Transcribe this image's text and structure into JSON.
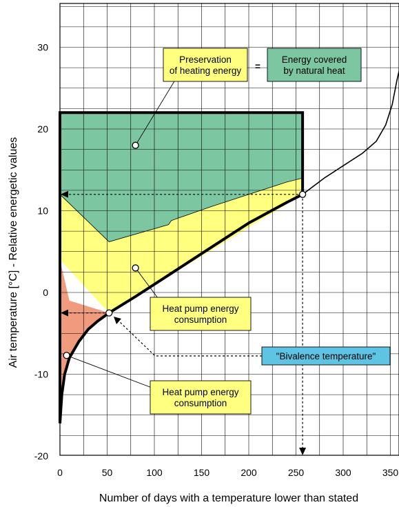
{
  "chart_data": {
    "type": "area",
    "xlabel": "Number of days with a temperature lower than stated",
    "ylabel": "Air temperature [°C] - Relative energetic values",
    "xlim": [
      0,
      360
    ],
    "ylim": [
      -20,
      35
    ],
    "x_ticks": [
      "0",
      "50",
      "100",
      "150",
      "200",
      "250",
      "300",
      "350"
    ],
    "y_ticks": [
      "-20",
      "-10",
      "0",
      "10",
      "20",
      "30"
    ],
    "grid": true,
    "temperature_curve": {
      "x": [
        0,
        2,
        5,
        10,
        20,
        30,
        40,
        52,
        80,
        120,
        160,
        200,
        240,
        257,
        280,
        300,
        320,
        335,
        345,
        352,
        357,
        360
      ],
      "y": [
        -16,
        -12.5,
        -10,
        -8,
        -6,
        -4.5,
        -3.5,
        -2.5,
        -0.5,
        2.5,
        5.5,
        8.5,
        11,
        12,
        14,
        15.5,
        17,
        18.5,
        20.5,
        23,
        26,
        27.5
      ]
    },
    "heating_energy_envelope": {
      "x": [
        0,
        0,
        257,
        257
      ],
      "y": [
        -16,
        22,
        22,
        12
      ]
    },
    "areas": [
      {
        "name": "Energy covered by natural heat",
        "color": "#7cc6a2",
        "x": [
          0,
          257,
          257,
          240,
          200,
          160,
          118,
          115,
          52,
          0
        ],
        "y": [
          22,
          22,
          14,
          13.5,
          12,
          10.5,
          8.8,
          8.3,
          6.2,
          12
        ]
      },
      {
        "name": "Heat pump energy consumption",
        "color": "#ffff80",
        "x": [
          0,
          52,
          115,
          118,
          160,
          200,
          240,
          257,
          257,
          52,
          0
        ],
        "y": [
          12,
          6.2,
          8.3,
          8.8,
          10.5,
          12,
          13.5,
          14,
          12,
          -2.5,
          4
        ]
      },
      {
        "name": "Heat pump energy consumption",
        "color": "#f09a7e",
        "x": [
          0,
          10,
          52,
          30,
          20,
          10,
          5,
          0
        ],
        "y": [
          4,
          -1,
          -2.5,
          -4.5,
          -6,
          -8,
          -10,
          -13
        ]
      }
    ],
    "annotations": {
      "preservation": "Preservation\nof heating energy",
      "equals": "=",
      "natural_heat": "Energy covered\nby natural heat",
      "hp_consumption_upper": "Heat pump energy\nconsumption",
      "hp_consumption_lower": "Heat pump energy\nconsumption",
      "bivalence": "\"Bivalence temperature\""
    },
    "marked_points": [
      {
        "x": 257,
        "y": 12
      },
      {
        "x": 52,
        "y": -2.5
      },
      {
        "x": 0,
        "y": 12
      },
      {
        "x": 0,
        "y": -2.5
      },
      {
        "x": 257,
        "y": -20
      }
    ],
    "colors": {
      "natural_heat": "#7cc6a2",
      "hp_yellow": "#ffff80",
      "hp_red": "#f09a7e",
      "bivalence_box": "#5fc3e4"
    }
  }
}
